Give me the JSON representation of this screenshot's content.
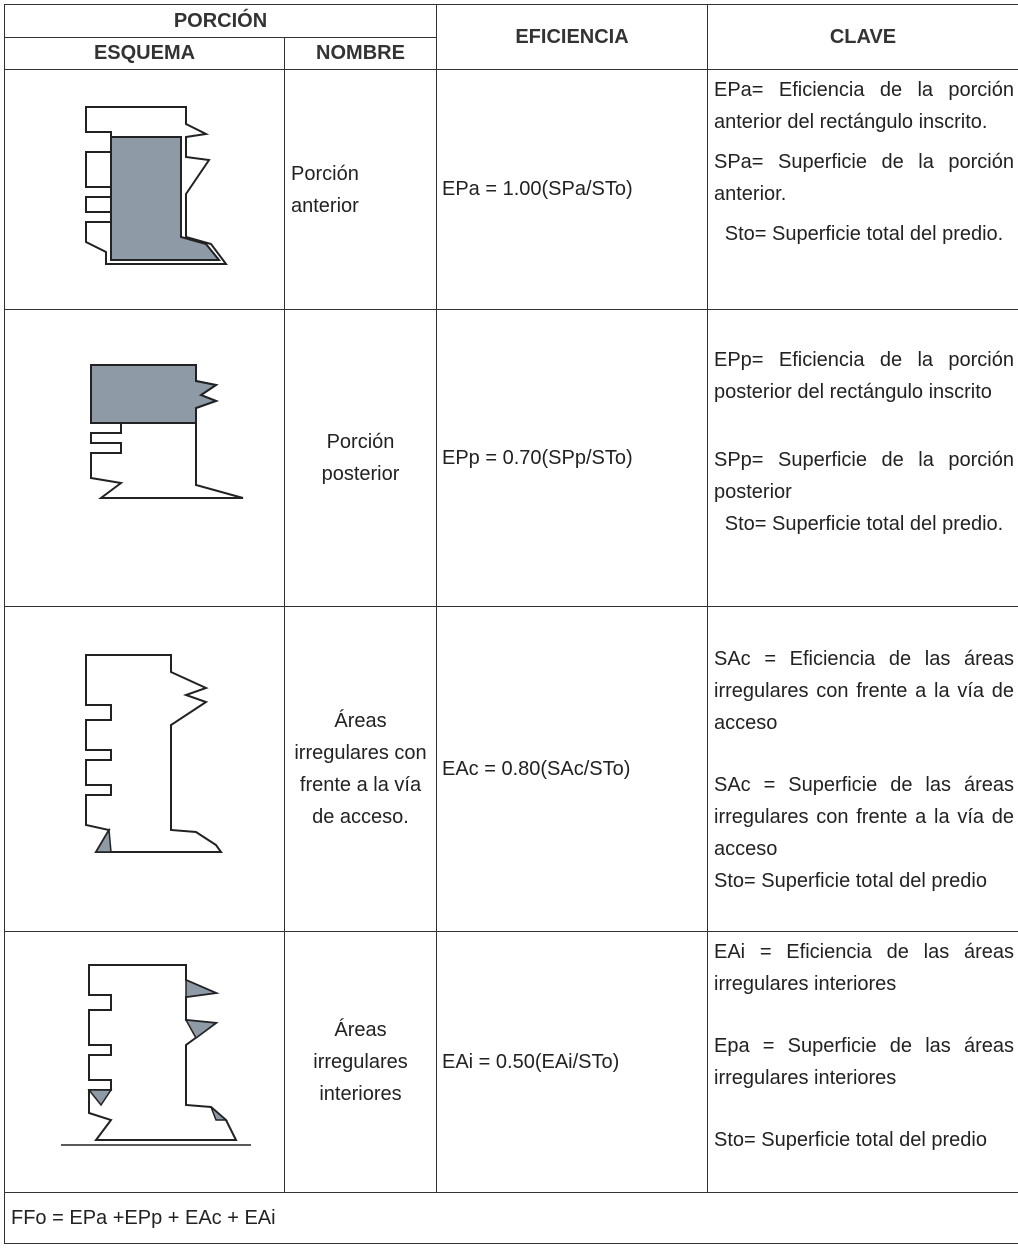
{
  "header": {
    "porcion": "PORCIÓN",
    "esquema": "ESQUEMA",
    "nombre": "NOMBRE",
    "eficiencia": "EFICIENCIA",
    "clave": "CLAVE"
  },
  "rows": [
    {
      "nombre": "Porción anterior",
      "eficiencia": "EPa = 1.00(SPa/STo)",
      "clave": [
        "EPa= Eficiencia de la porción anterior del rectángulo inscrito.",
        "SPa= Superficie de la porción anterior.",
        "Sto= Superficie total del predio."
      ]
    },
    {
      "nombre": "Porción posterior",
      "eficiencia": "EPp = 0.70(SPp/STo)",
      "clave": [
        "EPp= Eficiencia de la porción posterior del rectángulo inscrito",
        "SPp= Superficie de la porción posterior",
        "Sto= Superficie total del predio."
      ]
    },
    {
      "nombre": "Áreas irregulares con frente a la vía de acceso.",
      "eficiencia": "EAc = 0.80(SAc/STo)",
      "clave": [
        "SAc = Eficiencia de las áreas irregulares con frente a la vía de acceso",
        "SAc = Superficie de las áreas irregulares con frente a la vía de acceso",
        "Sto= Superficie total del predio"
      ]
    },
    {
      "nombre": "Áreas irregulares interiores",
      "eficiencia": "EAi = 0.50(EAi/STo)",
      "clave": [
        "EAi = Eficiencia de las áreas irregulares interiores",
        "Epa = Superficie de las áreas irregulares interiores",
        "Sto= Superficie total del predio"
      ]
    }
  ],
  "footer": "FFo = EPa +EPp + EAc + EAi"
}
